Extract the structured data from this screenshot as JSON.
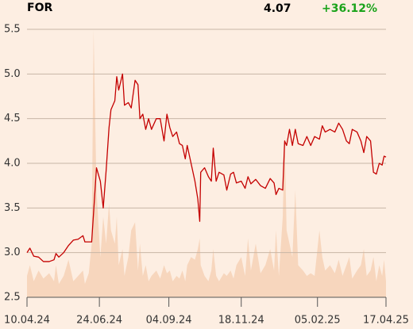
{
  "chart_data": {
    "type": "line",
    "title": "FOR",
    "last_price": "4.07",
    "change": "+36.12%",
    "x": [
      "2024-04-10",
      "2024-04-13",
      "2024-04-17",
      "2024-04-22",
      "2024-04-27",
      "2024-05-03",
      "2024-05-08",
      "2024-05-10",
      "2024-05-13",
      "2024-05-18",
      "2024-05-23",
      "2024-05-28",
      "2024-06-02",
      "2024-06-07",
      "2024-06-09",
      "2024-06-13",
      "2024-06-16",
      "2024-06-18",
      "2024-06-21",
      "2024-06-25",
      "2024-06-28",
      "2024-07-01",
      "2024-07-04",
      "2024-07-06",
      "2024-07-10",
      "2024-07-12",
      "2024-07-14",
      "2024-07-18",
      "2024-07-20",
      "2024-07-24",
      "2024-07-27",
      "2024-07-31",
      "2024-08-03",
      "2024-08-05",
      "2024-08-08",
      "2024-08-11",
      "2024-08-14",
      "2024-08-17",
      "2024-08-22",
      "2024-08-26",
      "2024-08-30",
      "2024-09-02",
      "2024-09-05",
      "2024-09-08",
      "2024-09-12",
      "2024-09-15",
      "2024-09-18",
      "2024-09-21",
      "2024-09-23",
      "2024-09-27",
      "2024-10-01",
      "2024-10-04",
      "2024-10-06",
      "2024-10-07",
      "2024-10-11",
      "2024-10-15",
      "2024-10-18",
      "2024-10-20",
      "2024-10-23",
      "2024-10-26",
      "2024-10-31",
      "2024-11-03",
      "2024-11-07",
      "2024-11-10",
      "2024-11-13",
      "2024-11-18",
      "2024-11-22",
      "2024-11-25",
      "2024-11-28",
      "2024-12-03",
      "2024-12-08",
      "2024-12-13",
      "2024-12-18",
      "2024-12-22",
      "2024-12-24",
      "2024-12-27",
      "2024-12-31",
      "2025-01-02",
      "2025-01-04",
      "2025-01-07",
      "2025-01-10",
      "2025-01-13",
      "2025-01-16",
      "2025-01-21",
      "2025-01-25",
      "2025-01-29",
      "2025-02-02",
      "2025-02-07",
      "2025-02-10",
      "2025-02-13",
      "2025-02-18",
      "2025-02-23",
      "2025-02-27",
      "2025-03-03",
      "2025-03-07",
      "2025-03-10",
      "2025-03-13",
      "2025-03-18",
      "2025-03-22",
      "2025-03-25",
      "2025-03-28",
      "2025-04-01",
      "2025-04-04",
      "2025-04-07",
      "2025-04-10",
      "2025-04-13",
      "2025-04-15",
      "2025-04-17"
    ],
    "series": [
      {
        "color": "#c40000",
        "values": [
          3.0,
          3.05,
          2.96,
          2.95,
          2.9,
          2.9,
          2.92,
          2.99,
          2.95,
          3.0,
          3.08,
          3.14,
          3.15,
          3.19,
          3.12,
          3.12,
          3.12,
          3.45,
          3.95,
          3.8,
          3.5,
          3.92,
          4.4,
          4.6,
          4.7,
          4.97,
          4.82,
          5.0,
          4.65,
          4.68,
          4.62,
          4.93,
          4.88,
          4.5,
          4.55,
          4.38,
          4.5,
          4.38,
          4.5,
          4.5,
          4.25,
          4.55,
          4.4,
          4.3,
          4.35,
          4.22,
          4.2,
          4.05,
          4.2,
          4.0,
          3.8,
          3.6,
          3.35,
          3.9,
          3.95,
          3.85,
          3.8,
          4.17,
          3.8,
          3.9,
          3.87,
          3.7,
          3.88,
          3.9,
          3.78,
          3.8,
          3.72,
          3.85,
          3.77,
          3.82,
          3.75,
          3.72,
          3.83,
          3.78,
          3.65,
          3.72,
          3.7,
          4.25,
          4.2,
          4.38,
          4.2,
          4.38,
          4.22,
          4.2,
          4.3,
          4.2,
          4.3,
          4.27,
          4.42,
          4.35,
          4.38,
          4.35,
          4.45,
          4.38,
          4.25,
          4.22,
          4.38,
          4.35,
          4.25,
          4.12,
          4.3,
          4.25,
          3.9,
          3.88,
          4.0,
          3.98,
          4.08,
          4.07
        ]
      }
    ],
    "volume": {
      "color": "#f7d6bd",
      "axis": "y2",
      "values": [
        8,
        12,
        6,
        10,
        7,
        9,
        6,
        12,
        5,
        8,
        14,
        6,
        8,
        10,
        5,
        9,
        20,
        100,
        40,
        15,
        30,
        20,
        35,
        25,
        20,
        30,
        12,
        18,
        8,
        15,
        25,
        28,
        10,
        20,
        8,
        12,
        6,
        8,
        10,
        7,
        12,
        9,
        10,
        6,
        8,
        7,
        10,
        6,
        12,
        15,
        14,
        18,
        22,
        12,
        8,
        6,
        10,
        18,
        8,
        6,
        9,
        8,
        10,
        7,
        12,
        15,
        8,
        22,
        10,
        20,
        9,
        12,
        18,
        10,
        25,
        8,
        30,
        60,
        25,
        20,
        15,
        40,
        12,
        10,
        8,
        9,
        8,
        25,
        15,
        10,
        12,
        9,
        14,
        8,
        12,
        15,
        7,
        10,
        12,
        18,
        8,
        10,
        15,
        6,
        12,
        8,
        14,
        6
      ]
    },
    "xlim": [
      "2024-04-10",
      "2025-04-17"
    ],
    "xticks": [
      {
        "value": "2024-04-10",
        "label": "10.04.24"
      },
      {
        "value": "2024-06-24",
        "label": "24.06.24"
      },
      {
        "value": "2024-09-04",
        "label": "04.09.24"
      },
      {
        "value": "2024-11-18",
        "label": "18.11.24"
      },
      {
        "value": "2025-02-05",
        "label": "05.02.25"
      },
      {
        "value": "2025-04-17",
        "label": "17.04.25"
      }
    ],
    "ylim": [
      2.5,
      5.5
    ],
    "yticks": [
      2.5,
      {
        "value": 3,
        "label": "3.0"
      },
      3.5,
      {
        "value": 4,
        "label": "4.0"
      },
      4.5,
      {
        "value": 5,
        "label": "5.0"
      },
      5.5
    ],
    "y2lim": [
      0,
      100
    ],
    "grid": true,
    "change_color": "#1aa31a"
  }
}
